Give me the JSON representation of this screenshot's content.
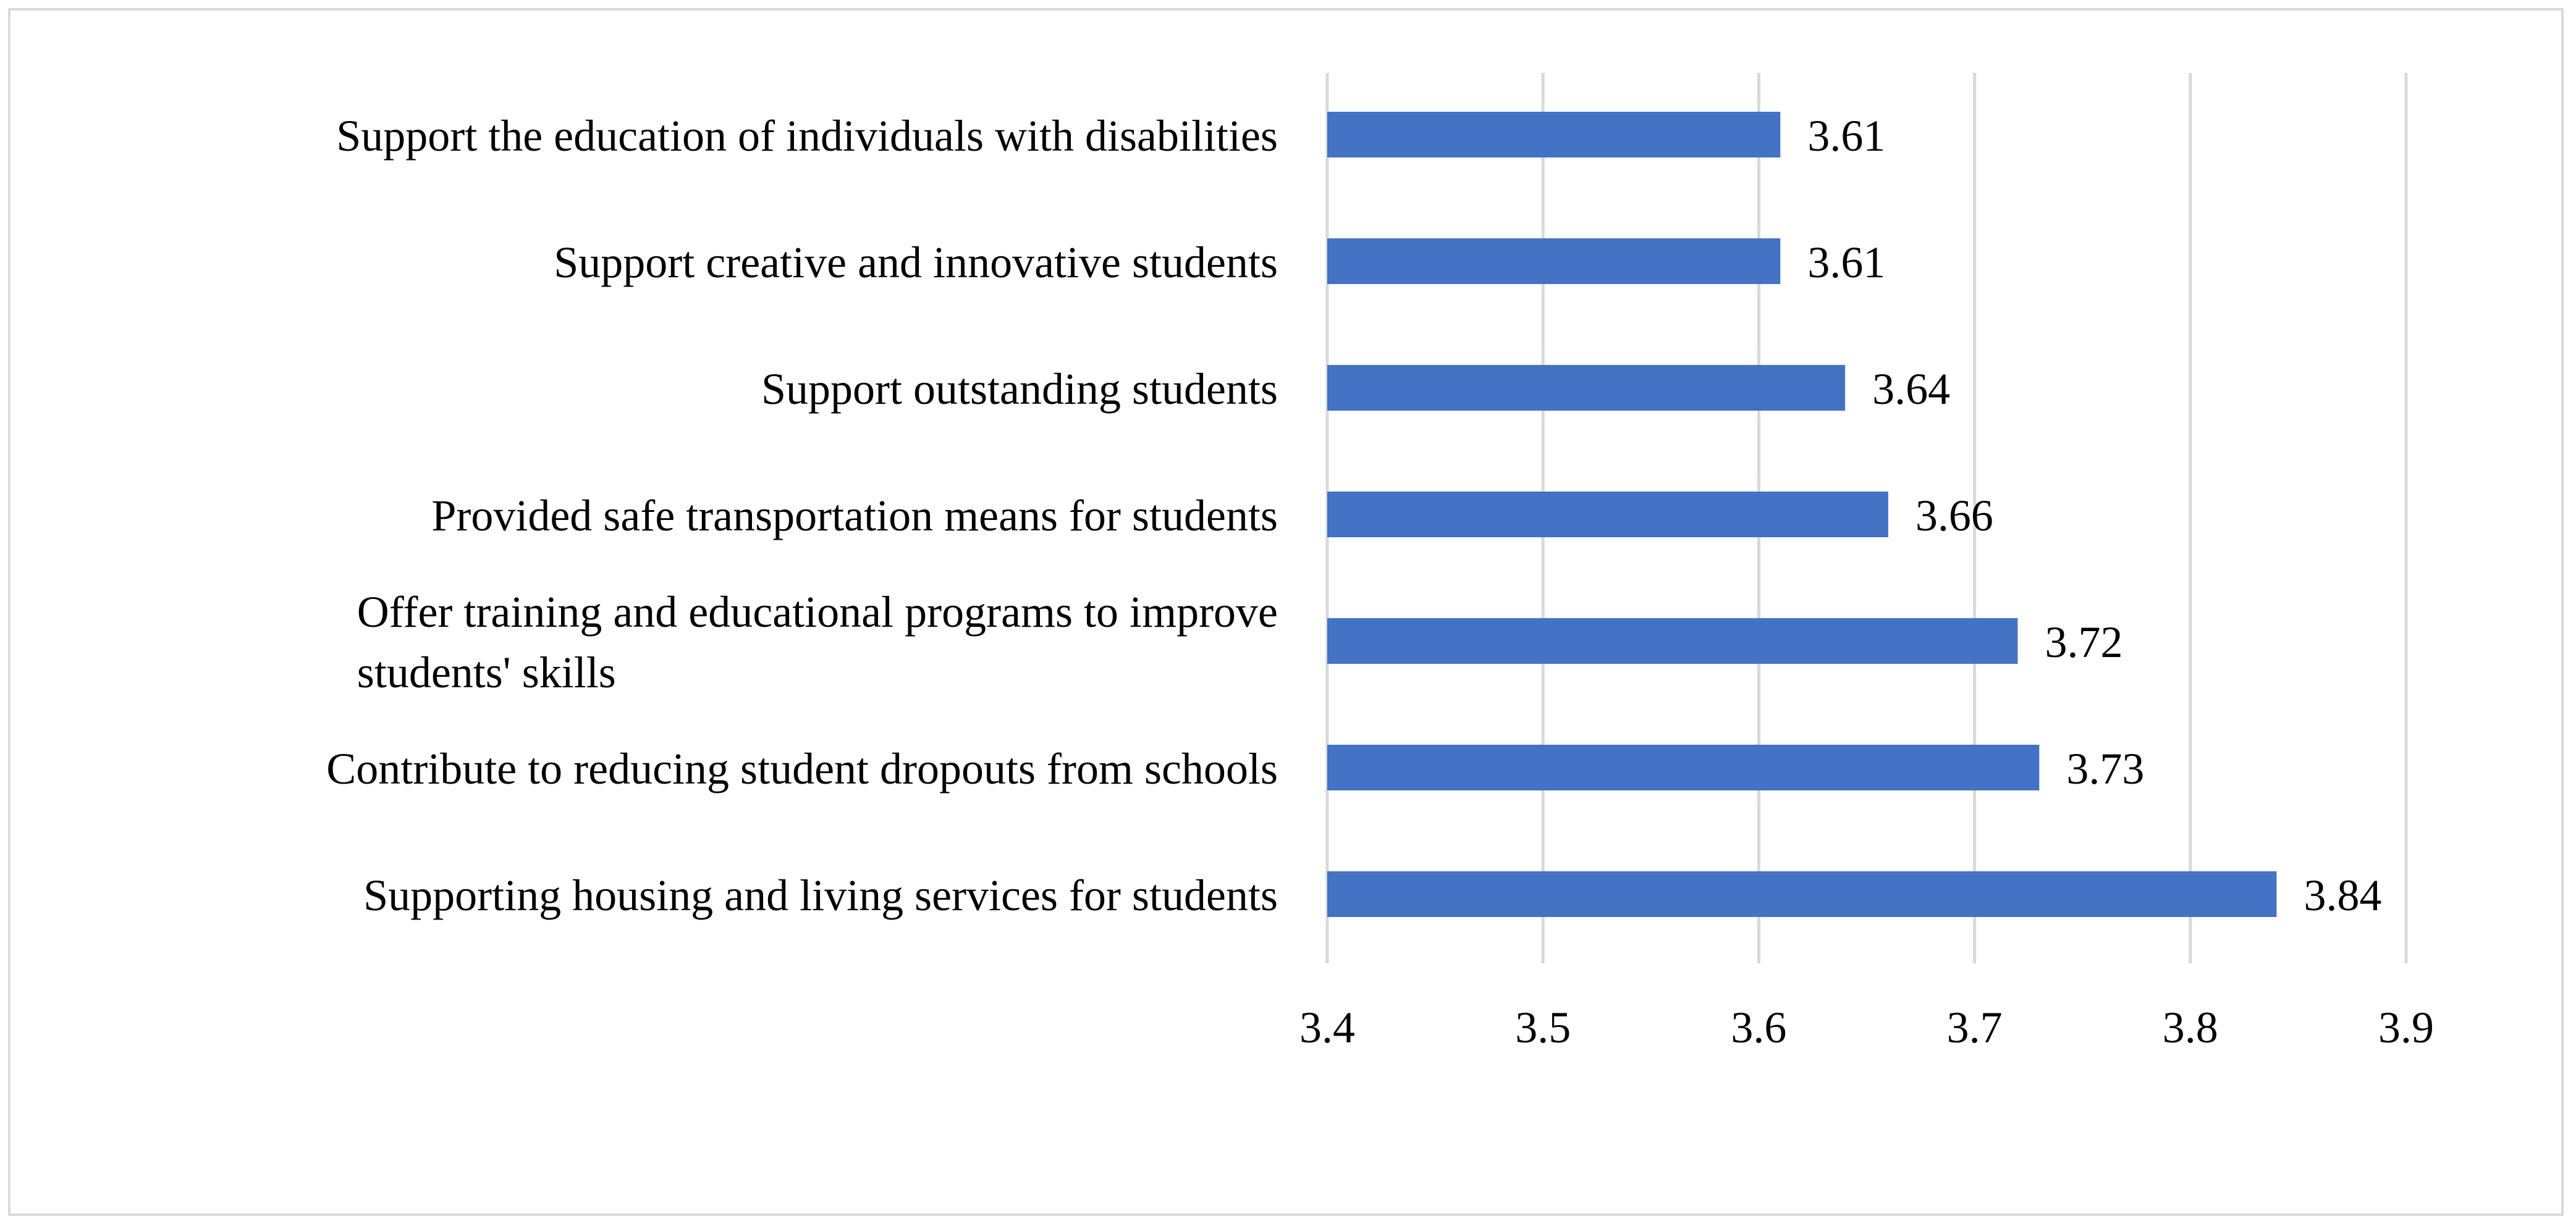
{
  "chart_data": {
    "type": "bar",
    "orientation": "horizontal",
    "title": "",
    "xlabel": "",
    "ylabel": "",
    "categories": [
      [
        "Support the education of individuals with disabilities"
      ],
      [
        "Support creative and innovative students"
      ],
      [
        "Support outstanding students"
      ],
      [
        "Provided safe transportation means for students"
      ],
      [
        "Offer training and educational programs to improve",
        "students' skills"
      ],
      [
        "Contribute to reducing student dropouts from schools"
      ],
      [
        "Supporting housing and living services for students"
      ]
    ],
    "values": [
      3.61,
      3.61,
      3.64,
      3.66,
      3.72,
      3.73,
      3.84
    ],
    "data_labels": [
      "3.61",
      "3.61",
      "3.64",
      "3.66",
      "3.72",
      "3.73",
      "3.84"
    ],
    "xlim": [
      3.4,
      3.9
    ],
    "ticks": [
      3.4,
      3.5,
      3.6,
      3.7,
      3.8,
      3.9
    ],
    "tick_labels": [
      "3.4",
      "3.5",
      "3.6",
      "3.7",
      "3.8",
      "3.9"
    ],
    "grid": true,
    "legend": "none",
    "colors": {
      "bar": "#4472c4",
      "grid": "#d9d9d9",
      "frame": "#d9d9d9",
      "text": "#000000"
    }
  }
}
